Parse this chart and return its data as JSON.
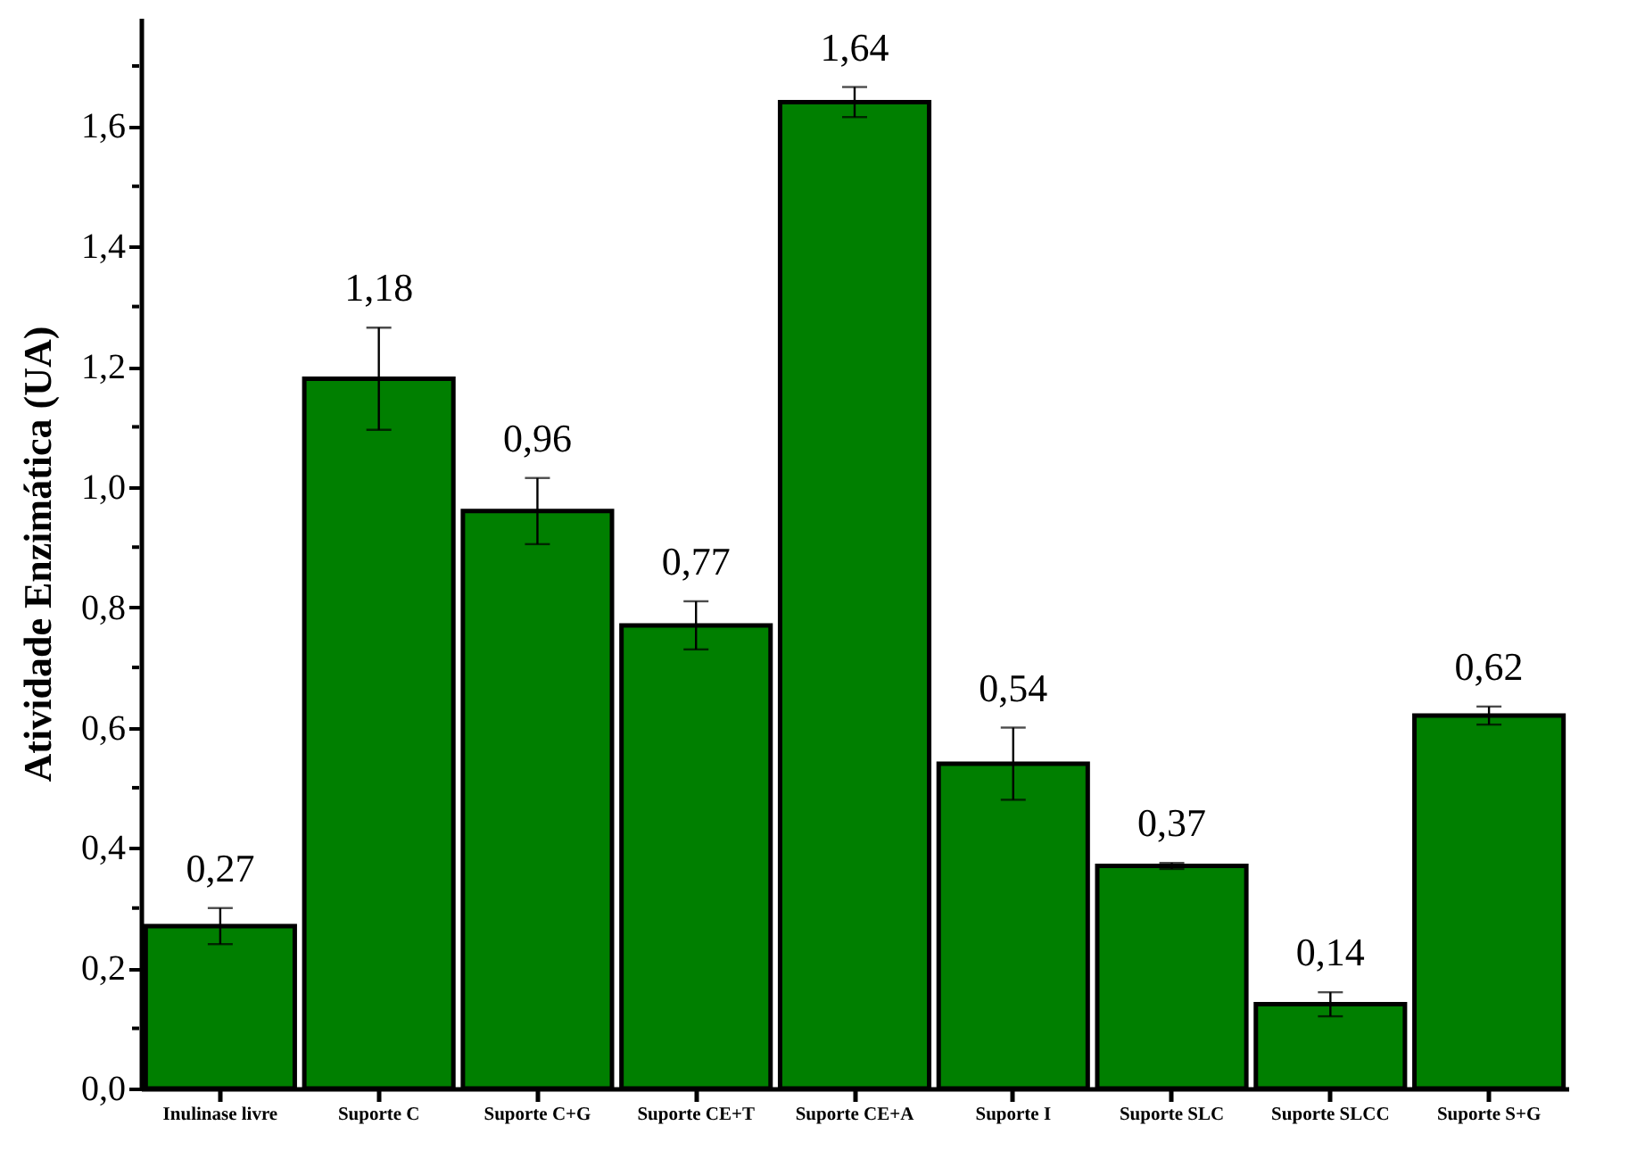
{
  "chart_data": {
    "type": "bar",
    "ylabel": "Atividade Enzimática (UA)",
    "categories": [
      "Inulinase livre",
      "Suporte C",
      "Suporte C+G",
      "Suporte CE+T",
      "Suporte CE+A",
      "Suporte I",
      "Suporte SLC",
      "Suporte SLCC",
      "Suporte S+G"
    ],
    "values": [
      0.27,
      1.18,
      0.96,
      0.77,
      1.64,
      0.54,
      0.37,
      0.14,
      0.62
    ],
    "errors": [
      0.03,
      0.085,
      0.055,
      0.04,
      0.025,
      0.06,
      0.005,
      0.02,
      0.015
    ],
    "value_labels": [
      "0,27",
      "1,18",
      "0,96",
      "0,77",
      "1,64",
      "0,54",
      "0,37",
      "0,14",
      "0,62"
    ],
    "color": "#007f00",
    "ylim": [
      0,
      1.78
    ],
    "yticks": [
      {
        "value": 0,
        "label": "0,0"
      },
      {
        "value": 0.1,
        "label": null
      },
      {
        "value": 0.2,
        "label": "0,2"
      },
      {
        "value": 0.3,
        "label": null
      },
      {
        "value": 0.4,
        "label": "0,4"
      },
      {
        "value": 0.5,
        "label": null
      },
      {
        "value": 0.6,
        "label": "0,6"
      },
      {
        "value": 0.7,
        "label": null
      },
      {
        "value": 0.8,
        "label": "0,8"
      },
      {
        "value": 0.9,
        "label": null
      },
      {
        "value": 1.0,
        "label": "1,0"
      },
      {
        "value": 1.1,
        "label": null
      },
      {
        "value": 1.2,
        "label": "1,2"
      },
      {
        "value": 1.3,
        "label": null
      },
      {
        "value": 1.4,
        "label": "1,4"
      },
      {
        "value": 1.5,
        "label": null
      },
      {
        "value": 1.6,
        "label": "1,6"
      },
      {
        "value": 1.7,
        "label": null
      }
    ],
    "grid": false
  }
}
